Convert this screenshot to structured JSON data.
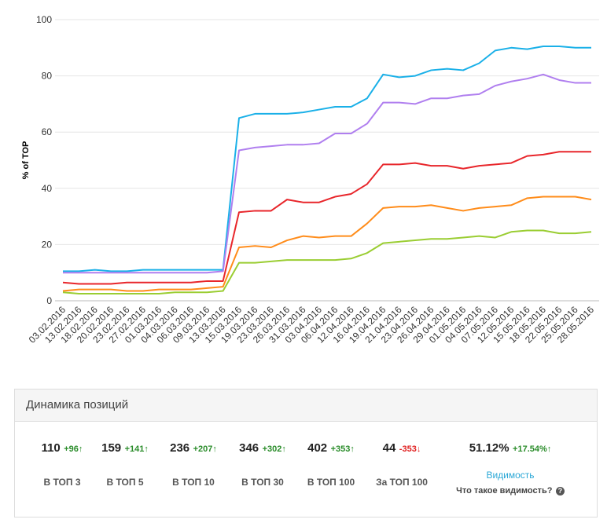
{
  "chart_data": {
    "type": "line",
    "y_label": "% of TOP",
    "categories": [
      "03.02.2016",
      "13.02.2016",
      "18.02.2016",
      "20.02.2016",
      "23.02.2016",
      "27.02.2016",
      "01.03.2016",
      "04.03.2016",
      "06.03.2016",
      "09.03.2016",
      "13.03.2016",
      "15.03.2016",
      "19.03.2016",
      "23.03.2016",
      "26.03.2016",
      "31.03.2016",
      "03.04.2016",
      "06.04.2016",
      "12.04.2016",
      "16.04.2016",
      "19.04.2016",
      "21.04.2016",
      "23.04.2016",
      "26.04.2016",
      "29.04.2016",
      "01.05.2016",
      "04.05.2016",
      "07.05.2016",
      "12.05.2016",
      "15.05.2016",
      "18.05.2016",
      "22.05.2016",
      "25.05.2016",
      "28.05.2016"
    ],
    "series": [
      {
        "color": "#1ab0e8",
        "values": [
          10.5,
          10.5,
          11,
          10.5,
          10.5,
          11,
          11,
          11,
          11,
          11,
          11,
          65,
          66.5,
          66.5,
          66.5,
          67,
          68,
          69,
          69,
          72,
          80.5,
          79.5,
          80,
          82,
          82.5,
          82,
          84.5,
          89,
          90,
          89.5,
          90.5,
          90.5,
          90,
          90
        ]
      },
      {
        "color": "#b07fef",
        "values": [
          10,
          10,
          10,
          10,
          10,
          10,
          10,
          10,
          10,
          10,
          10.5,
          53.5,
          54.5,
          55,
          55.5,
          55.5,
          56,
          59.5,
          59.5,
          63,
          70.5,
          70.5,
          70,
          72,
          72,
          73,
          73.5,
          76.5,
          78,
          79,
          80.5,
          78.5,
          77.5,
          77.5
        ]
      },
      {
        "color": "#e8262b",
        "values": [
          6.5,
          6,
          6,
          6,
          6.5,
          6.5,
          6.5,
          6.5,
          6.5,
          7,
          7,
          31.5,
          32,
          32,
          36,
          35,
          35,
          37,
          38,
          41.5,
          48.5,
          48.5,
          49,
          48,
          48,
          47,
          48,
          48.5,
          49,
          51.5,
          52,
          53,
          53,
          53
        ]
      },
      {
        "color": "#ff8c1a",
        "values": [
          3.5,
          4,
          4,
          4,
          3.5,
          3.5,
          4,
          4,
          4,
          4.5,
          5,
          19,
          19.5,
          19,
          21.5,
          23,
          22.5,
          23,
          23,
          27.5,
          33,
          33.5,
          33.5,
          34,
          33,
          32,
          33,
          33.5,
          34,
          36.5,
          37,
          37,
          37,
          36
        ]
      },
      {
        "color": "#9acd32",
        "values": [
          3,
          2.5,
          2.5,
          2.5,
          2.5,
          2.5,
          2.5,
          3,
          3,
          3,
          3.5,
          13.5,
          13.5,
          14,
          14.5,
          14.5,
          14.5,
          14.5,
          15,
          17,
          20.5,
          21,
          21.5,
          22,
          22,
          22.5,
          23,
          22.5,
          24.5,
          25,
          25,
          24,
          24,
          24.5
        ]
      }
    ],
    "ylim": [
      0,
      100
    ],
    "yticks": [
      0,
      20,
      40,
      60,
      80,
      100
    ],
    "grid": true
  },
  "panel": {
    "title": "Динамика позиций",
    "stats": [
      {
        "value": "110",
        "delta": "+96",
        "label": "В ТОП 3"
      },
      {
        "value": "159",
        "delta": "+141",
        "label": "В ТОП 5"
      },
      {
        "value": "236",
        "delta": "+207",
        "label": "В ТОП 10"
      },
      {
        "value": "346",
        "delta": "+302",
        "label": "В ТОП 30"
      },
      {
        "value": "402",
        "delta": "+353",
        "label": "В ТОП 100"
      },
      {
        "value": "44",
        "delta": "-353",
        "label": "За ТОП 100"
      }
    ],
    "visibility": {
      "value": "51.12%",
      "delta": "+17.54%",
      "link": "Видимость",
      "help": "Что такое видимость?"
    }
  }
}
